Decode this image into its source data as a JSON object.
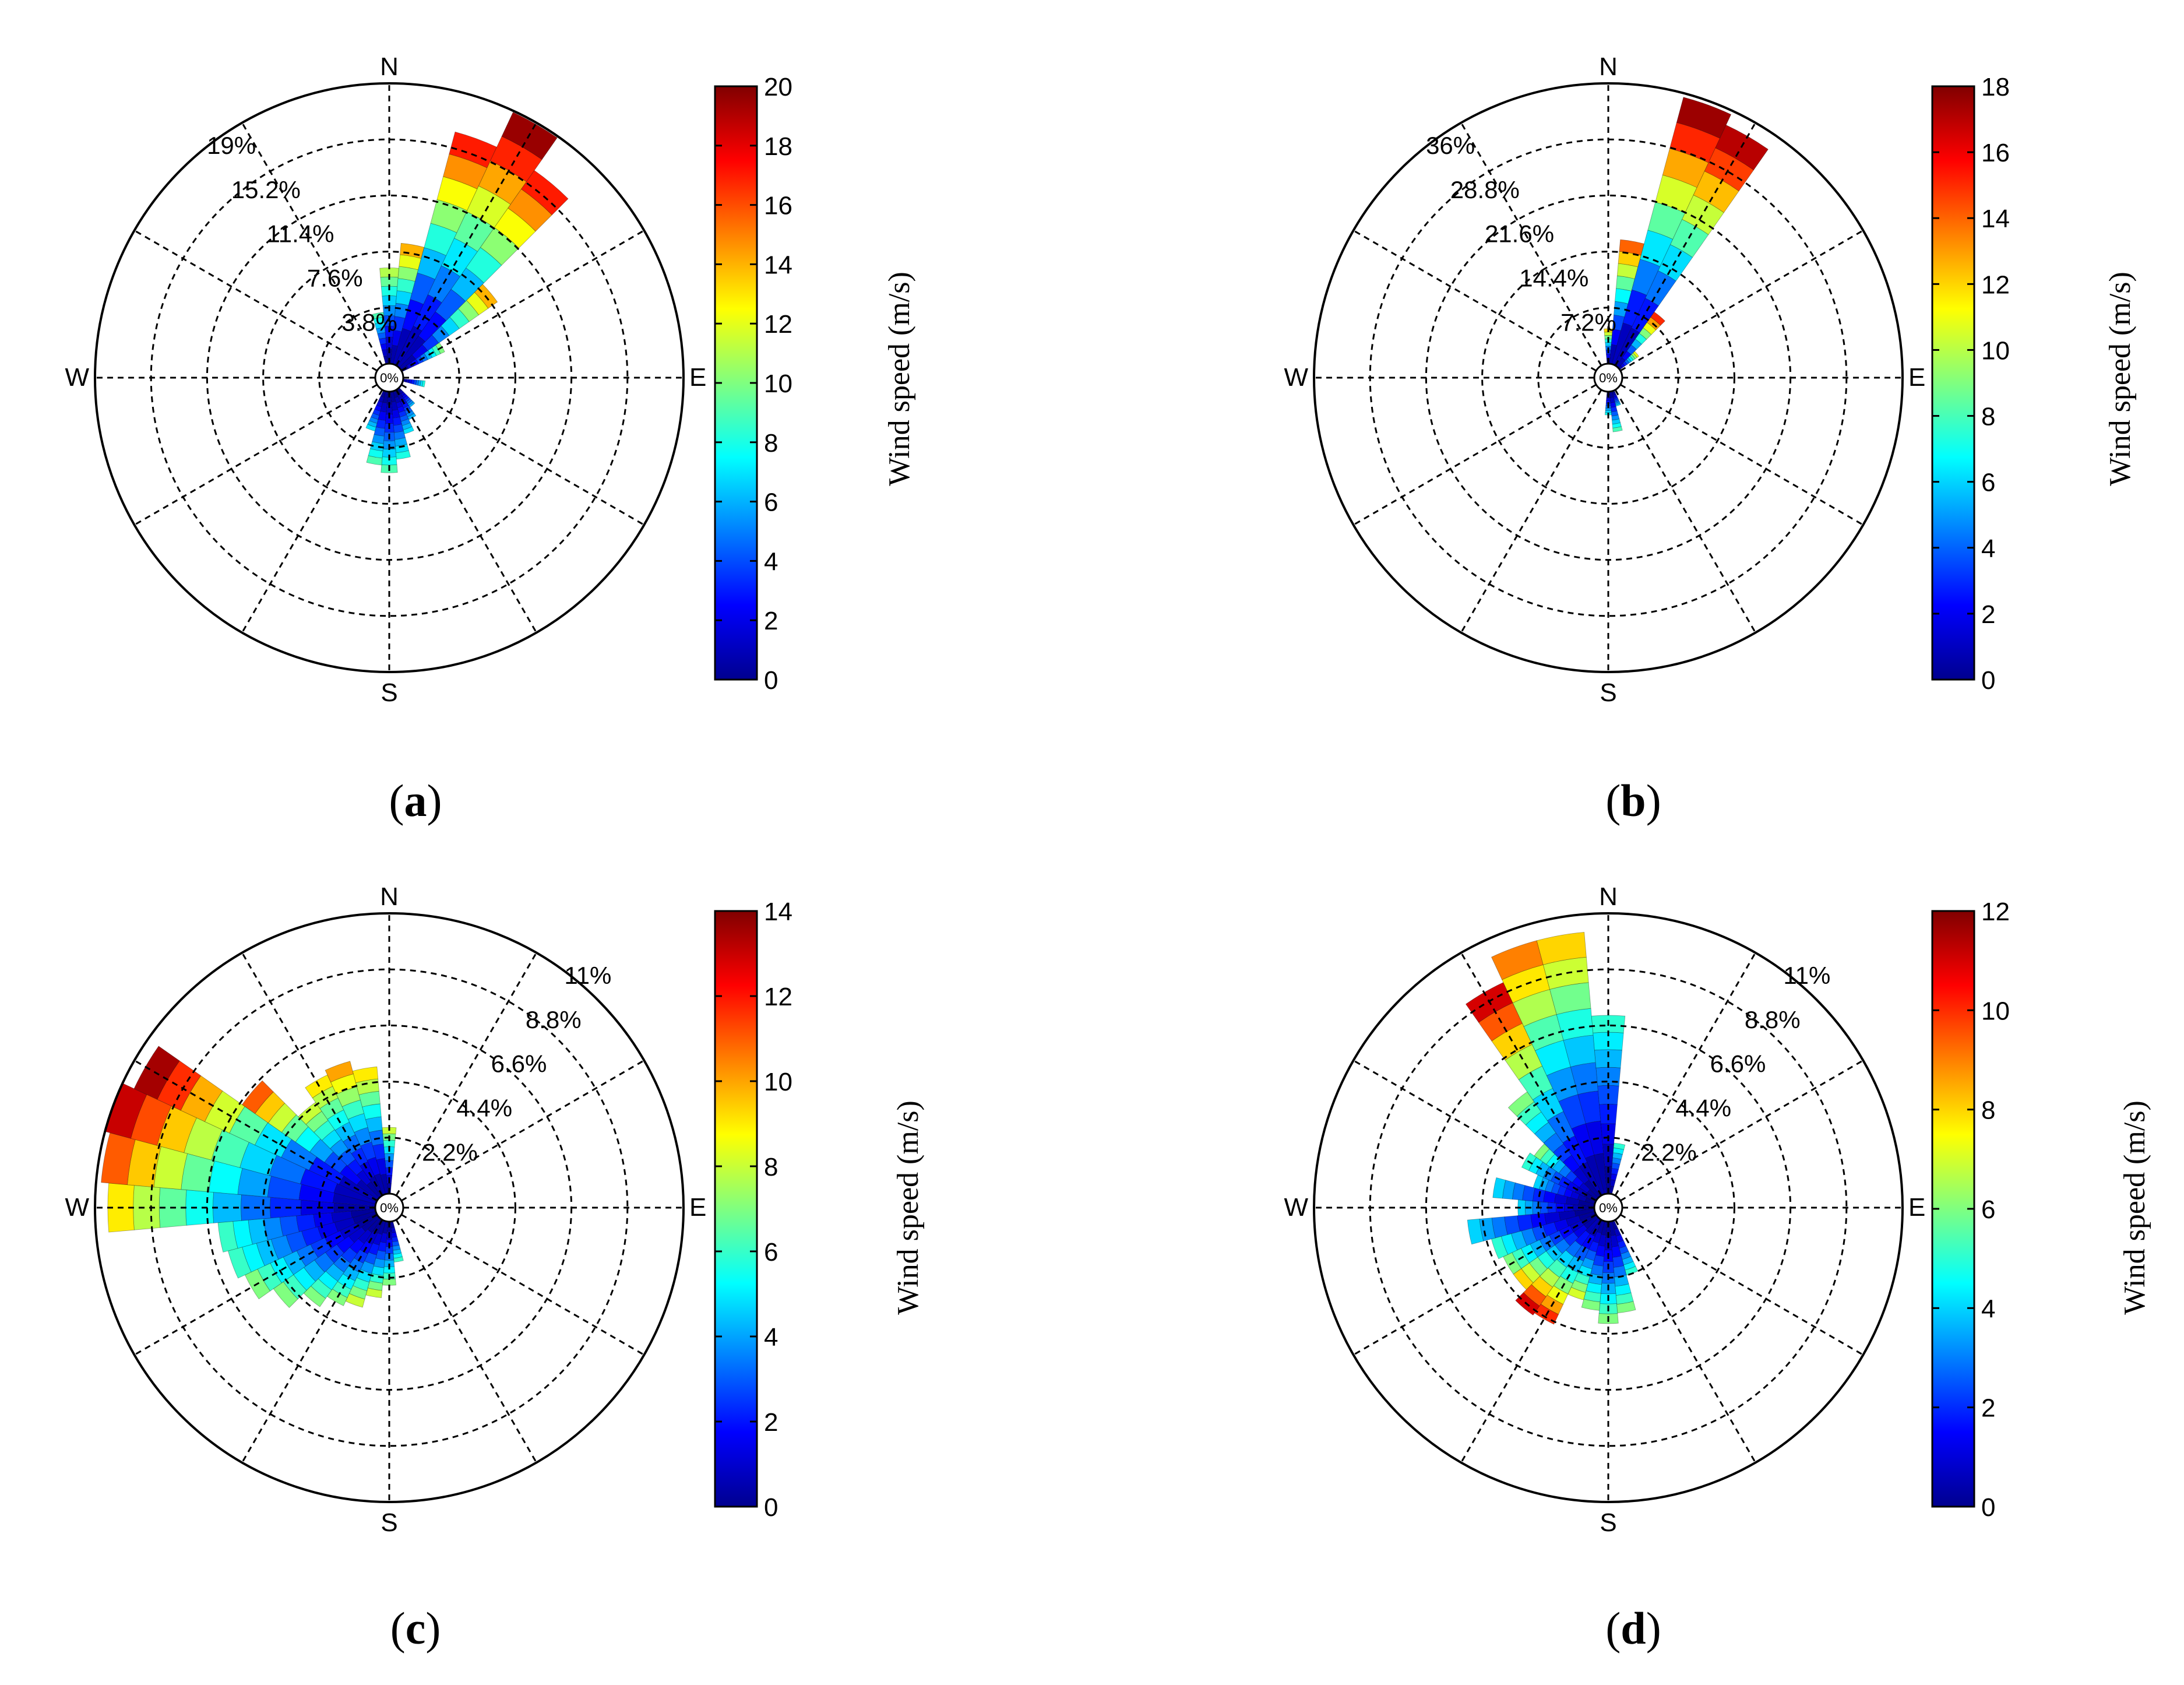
{
  "figure": {
    "panel_labels": [
      "(a)",
      "(b)",
      "(c)",
      "(d)"
    ],
    "colorbar_title": "Wind speed (m/s)",
    "center_label": "0%",
    "compass": [
      "N",
      "E",
      "S",
      "W"
    ]
  },
  "chart_data": [
    {
      "type": "windrose",
      "panel": "(a)",
      "direction_sectors": 36,
      "radius_labels": [
        "3.8%",
        "7.6%",
        "11.4%",
        "15.2%",
        "19%"
      ],
      "radius_max_percent": 19,
      "radius_label_side": "upper-left",
      "colorbar": {
        "min": 0,
        "max": 20,
        "ticks": [
          0,
          2,
          4,
          6,
          8,
          10,
          12,
          14,
          16,
          18,
          20
        ],
        "label": "Wind speed (m/s)"
      },
      "sectors": [
        {
          "dir": 10,
          "total": 8.2,
          "top_speed": 14
        },
        {
          "dir": 20,
          "total": 16.3,
          "top_speed": 17
        },
        {
          "dir": 30,
          "total": 18.9,
          "top_speed": 19.5
        },
        {
          "dir": 40,
          "total": 16.2,
          "top_speed": 17
        },
        {
          "dir": 50,
          "total": 8.0,
          "top_speed": 14
        },
        {
          "dir": 60,
          "total": 3.2,
          "top_speed": 10
        },
        {
          "dir": 100,
          "total": 1.5,
          "top_speed": 8
        },
        {
          "dir": 140,
          "total": 1.5,
          "top_speed": 6
        },
        {
          "dir": 150,
          "total": 2.2,
          "top_speed": 6
        },
        {
          "dir": 160,
          "total": 3.0,
          "top_speed": 7
        },
        {
          "dir": 170,
          "total": 4.6,
          "top_speed": 8
        },
        {
          "dir": 180,
          "total": 5.5,
          "top_speed": 9
        },
        {
          "dir": 190,
          "total": 5.0,
          "top_speed": 9
        },
        {
          "dir": 200,
          "total": 2.8,
          "top_speed": 7
        },
        {
          "dir": 350,
          "total": 3.5,
          "top_speed": 9
        },
        {
          "dir": 360,
          "total": 6.5,
          "top_speed": 11
        }
      ]
    },
    {
      "type": "windrose",
      "panel": "(b)",
      "direction_sectors": 36,
      "radius_labels": [
        "7.2%",
        "14.4%",
        "21.6%",
        "28.8%",
        "36%"
      ],
      "radius_max_percent": 36,
      "radius_label_side": "upper-left",
      "colorbar": {
        "min": 0,
        "max": 18,
        "ticks": [
          0,
          2,
          4,
          6,
          8,
          10,
          12,
          14,
          16,
          18
        ],
        "label": "Wind speed (m/s)"
      },
      "sectors": [
        {
          "dir": 10,
          "total": 16.0,
          "top_speed": 14
        },
        {
          "dir": 20,
          "total": 35.5,
          "top_speed": 17.5
        },
        {
          "dir": 30,
          "total": 34.0,
          "top_speed": 17
        },
        {
          "dir": 40,
          "total": 8.5,
          "top_speed": 15
        },
        {
          "dir": 50,
          "total": 3.0,
          "top_speed": 11
        },
        {
          "dir": 160,
          "total": 2.0,
          "top_speed": 6
        },
        {
          "dir": 170,
          "total": 5.2,
          "top_speed": 8
        },
        {
          "dir": 180,
          "total": 3.0,
          "top_speed": 7
        },
        {
          "dir": 360,
          "total": 4.5,
          "top_speed": 12
        }
      ]
    },
    {
      "type": "windrose",
      "panel": "(c)",
      "direction_sectors": 36,
      "radius_labels": [
        "2.2%",
        "4.4%",
        "6.6%",
        "8.8%",
        "11%"
      ],
      "radius_max_percent": 11,
      "radius_label_side": "upper-right",
      "colorbar": {
        "min": 0,
        "max": 14,
        "ticks": [
          0,
          2,
          4,
          6,
          8,
          10,
          12,
          14
        ],
        "label": "Wind speed (m/s)"
      },
      "sectors": [
        {
          "dir": 170,
          "total": 1.6,
          "top_speed": 6
        },
        {
          "dir": 180,
          "total": 2.5,
          "top_speed": 7
        },
        {
          "dir": 190,
          "total": 3.0,
          "top_speed": 8
        },
        {
          "dir": 200,
          "total": 3.5,
          "top_speed": 8
        },
        {
          "dir": 210,
          "total": 3.7,
          "top_speed": 7
        },
        {
          "dir": 220,
          "total": 4.2,
          "top_speed": 7
        },
        {
          "dir": 230,
          "total": 5.0,
          "top_speed": 7
        },
        {
          "dir": 240,
          "total": 5.7,
          "top_speed": 7
        },
        {
          "dir": 250,
          "total": 6.0,
          "top_speed": 6
        },
        {
          "dir": 260,
          "total": 6.2,
          "top_speed": 6
        },
        {
          "dir": 270,
          "total": 10.5,
          "top_speed": 9
        },
        {
          "dir": 280,
          "total": 10.8,
          "top_speed": 11
        },
        {
          "dir": 290,
          "total": 11.0,
          "top_speed": 13
        },
        {
          "dir": 300,
          "total": 10.5,
          "top_speed": 13.5
        },
        {
          "dir": 310,
          "total": 6.5,
          "top_speed": 11
        },
        {
          "dir": 320,
          "total": 4.5,
          "top_speed": 8
        },
        {
          "dir": 330,
          "total": 5.2,
          "top_speed": 9
        },
        {
          "dir": 340,
          "total": 5.4,
          "top_speed": 10
        },
        {
          "dir": 350,
          "total": 5.0,
          "top_speed": 9
        },
        {
          "dir": 360,
          "total": 2.6,
          "top_speed": 8
        }
      ]
    },
    {
      "type": "windrose",
      "panel": "(d)",
      "direction_sectors": 36,
      "radius_labels": [
        "2.2%",
        "4.4%",
        "6.6%",
        "8.8%",
        "11%"
      ],
      "radius_max_percent": 11,
      "radius_label_side": "upper-right",
      "colorbar": {
        "min": 0,
        "max": 12,
        "ticks": [
          0,
          2,
          4,
          6,
          8,
          10,
          12
        ],
        "label": "Wind speed (m/s)"
      },
      "sectors": [
        {
          "dir": 10,
          "total": 2.0,
          "top_speed": 5
        },
        {
          "dir": 160,
          "total": 2.2,
          "top_speed": 5
        },
        {
          "dir": 170,
          "total": 3.6,
          "top_speed": 6
        },
        {
          "dir": 180,
          "total": 4.0,
          "top_speed": 6
        },
        {
          "dir": 190,
          "total": 3.5,
          "top_speed": 6
        },
        {
          "dir": 200,
          "total": 3.2,
          "top_speed": 7
        },
        {
          "dir": 210,
          "total": 4.5,
          "top_speed": 10
        },
        {
          "dir": 220,
          "total": 4.6,
          "top_speed": 11
        },
        {
          "dir": 230,
          "total": 4.0,
          "top_speed": 8
        },
        {
          "dir": 240,
          "total": 4.0,
          "top_speed": 6
        },
        {
          "dir": 250,
          "total": 4.2,
          "top_speed": 5
        },
        {
          "dir": 260,
          "total": 5.0,
          "top_speed": 4
        },
        {
          "dir": 270,
          "total": 3.0,
          "top_speed": 4
        },
        {
          "dir": 280,
          "total": 4.0,
          "top_speed": 4
        },
        {
          "dir": 290,
          "total": 2.5,
          "top_speed": 4
        },
        {
          "dir": 300,
          "total": 3.2,
          "top_speed": 5
        },
        {
          "dir": 310,
          "total": 3.0,
          "top_speed": 6
        },
        {
          "dir": 320,
          "total": 5.0,
          "top_speed": 6
        },
        {
          "dir": 330,
          "total": 9.2,
          "top_speed": 11
        },
        {
          "dir": 340,
          "total": 10.3,
          "top_speed": 9
        },
        {
          "dir": 350,
          "total": 10.3,
          "top_speed": 8
        },
        {
          "dir": 360,
          "total": 7.0,
          "top_speed": 5
        }
      ]
    }
  ]
}
